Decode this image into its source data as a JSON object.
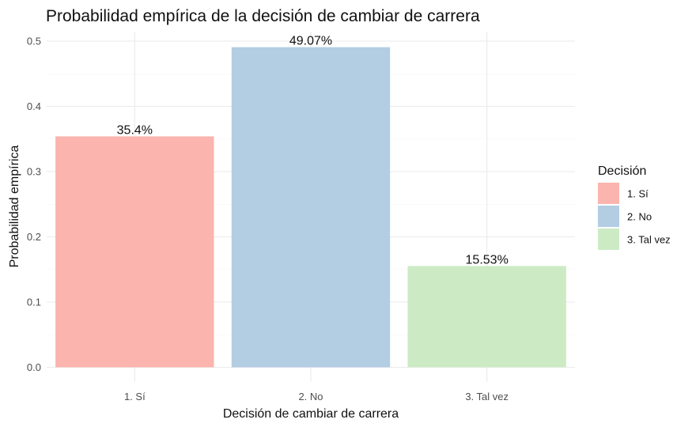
{
  "chart_data": {
    "type": "bar",
    "title": "Probabilidad empírica de la decisión de cambiar de carrera",
    "xlabel": "Decisión de cambiar de carrera",
    "ylabel": "Probabilidad empírica",
    "categories": [
      "1. Sí",
      "2. No",
      "3. Tal vez"
    ],
    "values": [
      0.354,
      0.4907,
      0.1553
    ],
    "data_labels": [
      "35.4%",
      "49.07%",
      "15.53%"
    ],
    "colors": [
      "#fbb4ae",
      "#b3cde3",
      "#ccebc5"
    ],
    "ylim": [
      0,
      0.5
    ],
    "yticks": [
      0.0,
      0.1,
      0.2,
      0.3,
      0.4,
      0.5
    ],
    "ytick_labels": [
      "0.0",
      "0.1",
      "0.2",
      "0.3",
      "0.4",
      "0.5"
    ],
    "grid": true,
    "legend": {
      "title": "Decisión",
      "position": "right",
      "entries": [
        "1. Sí",
        "2. No",
        "3. Tal vez"
      ]
    }
  }
}
